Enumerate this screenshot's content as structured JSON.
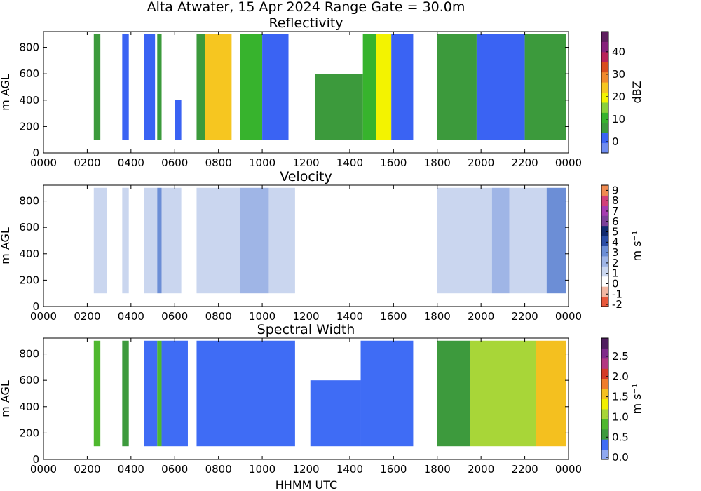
{
  "title": "Alta Atwater, 15 Apr 2024 Range Gate = 30.0m",
  "xlabel": "HHMM UTC",
  "colors": {
    "reflectivity_scale": [
      "#6f8cf0",
      "#3a63f3",
      "#3c9a3c",
      "#37b32d",
      "#8ad13a",
      "#f3f300",
      "#f6c620",
      "#f08a2d",
      "#d84d1f",
      "#b8225a",
      "#86217b",
      "#5e1f5e"
    ],
    "velocity_scale": [
      "#e8573a",
      "#f3b7a2",
      "#ffffff",
      "#cad6ef",
      "#9fb5e6",
      "#6c8ed6",
      "#2a4da6",
      "#102a6e",
      "#7a3f99",
      "#a53bb1",
      "#d13f7a",
      "#f08a50"
    ],
    "width_scale": [
      "#8fa8f0",
      "#3f6cf5",
      "#3d9a3d",
      "#4fb82f",
      "#a8d638",
      "#f1ef00",
      "#f4c01f",
      "#f07d2b",
      "#d43a26",
      "#b23782",
      "#7f2a89",
      "#4f1e5e"
    ]
  },
  "chart_data": [
    {
      "type": "heatmap",
      "title": "Reflectivity",
      "ylabel": "m AGL",
      "colorbar_label": "dBZ",
      "colorbar_ticks": [
        "0",
        "10",
        "20",
        "30",
        "40"
      ],
      "colorbar_range": [
        -5,
        49
      ],
      "xticks": [
        "0000",
        "0200",
        "0400",
        "0600",
        "0800",
        "1000",
        "1200",
        "1400",
        "1600",
        "1800",
        "2000",
        "2200",
        "0000"
      ],
      "yticks": [
        "0",
        "200",
        "400",
        "600",
        "800"
      ],
      "xlim": [
        0,
        24
      ],
      "ylim": [
        0,
        920
      ],
      "bands": [
        {
          "t0": 2.3,
          "t1": 2.6,
          "z0": 100,
          "z1": 900,
          "value": 8
        },
        {
          "t0": 3.6,
          "t1": 3.9,
          "z0": 100,
          "z1": 900,
          "value": 1
        },
        {
          "t0": 4.6,
          "t1": 5.1,
          "z0": 100,
          "z1": 900,
          "value": 2
        },
        {
          "t0": 5.2,
          "t1": 5.4,
          "z0": 100,
          "z1": 900,
          "value": 7
        },
        {
          "t0": 6.0,
          "t1": 6.3,
          "z0": 100,
          "z1": 400,
          "value": 1
        },
        {
          "t0": 7.0,
          "t1": 7.4,
          "z0": 100,
          "z1": 900,
          "value": 4
        },
        {
          "t0": 7.4,
          "t1": 8.6,
          "z0": 100,
          "z1": 900,
          "value": 25
        },
        {
          "t0": 9.0,
          "t1": 10.0,
          "z0": 100,
          "z1": 900,
          "value": 9
        },
        {
          "t0": 10.0,
          "t1": 11.2,
          "z0": 100,
          "z1": 900,
          "value": 3
        },
        {
          "t0": 12.4,
          "t1": 14.6,
          "z0": 100,
          "z1": 600,
          "value": 8
        },
        {
          "t0": 14.6,
          "t1": 15.2,
          "z0": 100,
          "z1": 900,
          "value": 10
        },
        {
          "t0": 15.2,
          "t1": 15.9,
          "z0": 100,
          "z1": 900,
          "value": 19
        },
        {
          "t0": 15.9,
          "t1": 16.9,
          "z0": 100,
          "z1": 900,
          "value": 3
        },
        {
          "t0": 18.0,
          "t1": 19.8,
          "z0": 100,
          "z1": 900,
          "value": 5
        },
        {
          "t0": 19.8,
          "t1": 22.0,
          "z0": 100,
          "z1": 900,
          "value": 2
        },
        {
          "t0": 22.0,
          "t1": 23.9,
          "z0": 100,
          "z1": 900,
          "value": 6
        }
      ]
    },
    {
      "type": "heatmap",
      "title": "Velocity",
      "ylabel": "m AGL",
      "colorbar_label": "m s⁻¹",
      "colorbar_ticks": [
        "-2",
        "-1",
        "0",
        "1",
        "2",
        "3",
        "4",
        "5",
        "6",
        "7",
        "8",
        "9"
      ],
      "colorbar_range": [
        -2.2,
        9.5
      ],
      "xticks": [
        "0000",
        "0200",
        "0400",
        "0600",
        "0800",
        "1000",
        "1200",
        "1400",
        "1600",
        "1800",
        "2000",
        "2200",
        "0000"
      ],
      "yticks": [
        "0",
        "200",
        "400",
        "600",
        "800"
      ],
      "xlim": [
        0,
        24
      ],
      "ylim": [
        0,
        920
      ],
      "bands": [
        {
          "t0": 2.3,
          "t1": 2.9,
          "z0": 100,
          "z1": 900,
          "value": 1
        },
        {
          "t0": 3.6,
          "t1": 3.9,
          "z0": 100,
          "z1": 900,
          "value": 1.5
        },
        {
          "t0": 4.6,
          "t1": 5.2,
          "z0": 100,
          "z1": 900,
          "value": 1
        },
        {
          "t0": 5.2,
          "t1": 5.4,
          "z0": 100,
          "z1": 900,
          "value": 3.2
        },
        {
          "t0": 5.4,
          "t1": 6.3,
          "z0": 100,
          "z1": 900,
          "value": 1
        },
        {
          "t0": 7.0,
          "t1": 9.0,
          "z0": 100,
          "z1": 900,
          "value": 1.5
        },
        {
          "t0": 9.0,
          "t1": 10.3,
          "z0": 100,
          "z1": 900,
          "value": 2.5
        },
        {
          "t0": 10.3,
          "t1": 11.5,
          "z0": 100,
          "z1": 900,
          "value": 1.2
        },
        {
          "t0": 12.2,
          "t1": 14.5,
          "z0": 100,
          "z1": 600,
          "value": 0.6
        },
        {
          "t0": 14.5,
          "t1": 16.9,
          "z0": 100,
          "z1": 900,
          "value": 0.6
        },
        {
          "t0": 18.0,
          "t1": 20.5,
          "z0": 100,
          "z1": 900,
          "value": 1.3
        },
        {
          "t0": 20.5,
          "t1": 21.3,
          "z0": 100,
          "z1": 900,
          "value": 2.6
        },
        {
          "t0": 21.3,
          "t1": 23.0,
          "z0": 100,
          "z1": 900,
          "value": 1.3
        },
        {
          "t0": 23.0,
          "t1": 23.9,
          "z0": 100,
          "z1": 900,
          "value": 3
        }
      ]
    },
    {
      "type": "heatmap",
      "title": "Spectral Width",
      "ylabel": "m AGL",
      "colorbar_label": "m s⁻¹",
      "colorbar_ticks": [
        "0.0",
        "0.5",
        "1.0",
        "1.5",
        "2.0",
        "2.5"
      ],
      "colorbar_range": [
        -0.05,
        2.95
      ],
      "xticks": [
        "0000",
        "0200",
        "0400",
        "0600",
        "0800",
        "1000",
        "1200",
        "1400",
        "1600",
        "1800",
        "2000",
        "2200",
        "0000"
      ],
      "yticks": [
        "0",
        "200",
        "400",
        "600",
        "800"
      ],
      "xlim": [
        0,
        24
      ],
      "ylim": [
        0,
        920
      ],
      "bands": [
        {
          "t0": 2.3,
          "t1": 2.6,
          "z0": 100,
          "z1": 900,
          "value": 0.9
        },
        {
          "t0": 3.6,
          "t1": 3.9,
          "z0": 100,
          "z1": 900,
          "value": 0.6
        },
        {
          "t0": 4.6,
          "t1": 5.2,
          "z0": 100,
          "z1": 900,
          "value": 0.4
        },
        {
          "t0": 5.2,
          "t1": 5.4,
          "z0": 100,
          "z1": 900,
          "value": 0.8
        },
        {
          "t0": 5.4,
          "t1": 6.6,
          "z0": 100,
          "z1": 900,
          "value": 0.3
        },
        {
          "t0": 7.0,
          "t1": 11.5,
          "z0": 100,
          "z1": 900,
          "value": 0.3
        },
        {
          "t0": 12.2,
          "t1": 14.5,
          "z0": 100,
          "z1": 600,
          "value": 0.3
        },
        {
          "t0": 14.5,
          "t1": 16.9,
          "z0": 100,
          "z1": 900,
          "value": 0.25
        },
        {
          "t0": 18.0,
          "t1": 19.5,
          "z0": 100,
          "z1": 900,
          "value": 0.5
        },
        {
          "t0": 19.5,
          "t1": 22.5,
          "z0": 100,
          "z1": 900,
          "value": 1.0
        },
        {
          "t0": 22.5,
          "t1": 23.9,
          "z0": 100,
          "z1": 900,
          "value": 1.5
        }
      ]
    }
  ]
}
